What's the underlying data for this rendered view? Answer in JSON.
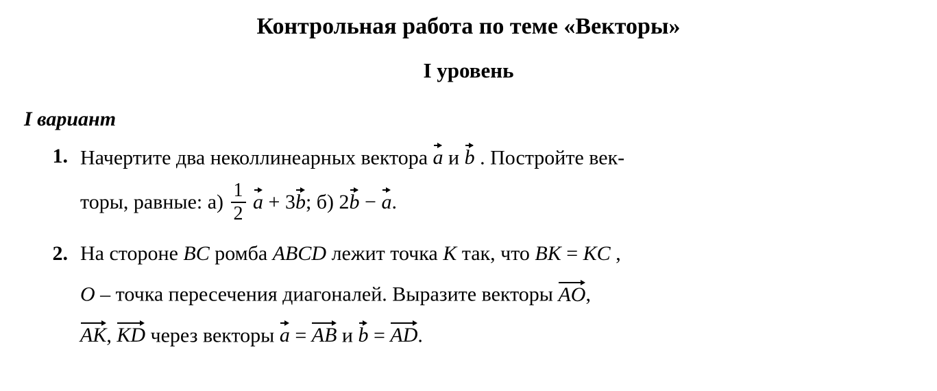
{
  "title": "Контрольная работа по теме «Векторы»",
  "level": "I уровень",
  "variant": "I вариант",
  "numbers": {
    "p1": "1.",
    "p2": "2."
  },
  "p1": {
    "pre": "Начертите два неколлинеарных вектора ",
    "vec_a": "a",
    "and": "  и  ",
    "vec_b": "b",
    "post": ". Постройте век-",
    "line2_pre": "торы, равные: а) ",
    "frac_num": "1",
    "frac_den": "2",
    "a2": "a",
    "plus3b": " + 3",
    "b2": "b",
    "semi": ";  б)  2",
    "b3": "b",
    "minus": " − ",
    "a3": "a",
    "dot": "."
  },
  "p2": {
    "l1a": "На стороне ",
    "BC": "BC",
    "l1b": " ромба ",
    "ABCD": "ABCD",
    "l1c": " лежит точка ",
    "K": "K",
    "l1d": " так, что ",
    "BK": "BK",
    "eq": " = ",
    "KC": "KC",
    "comma": ",",
    "l2a": "O",
    "l2b": " – точка пересечения диагоналей. Выразите векторы ",
    "AO": "AO",
    "comma2": ",",
    "AK": "AK",
    "comma3": ",  ",
    "KD": "KD",
    "l3a": " через векторы ",
    "a": "a",
    "eq2": " = ",
    "AB": "AB",
    "and2": "  и  ",
    "b": "b",
    "eq3": " = ",
    "AD": "AD",
    "dot": "."
  },
  "style": {
    "text_color": "#000000",
    "background": "#ffffff",
    "title_fontsize": 34,
    "level_fontsize": 31,
    "body_fontsize": 30,
    "font_family": "Times New Roman"
  }
}
